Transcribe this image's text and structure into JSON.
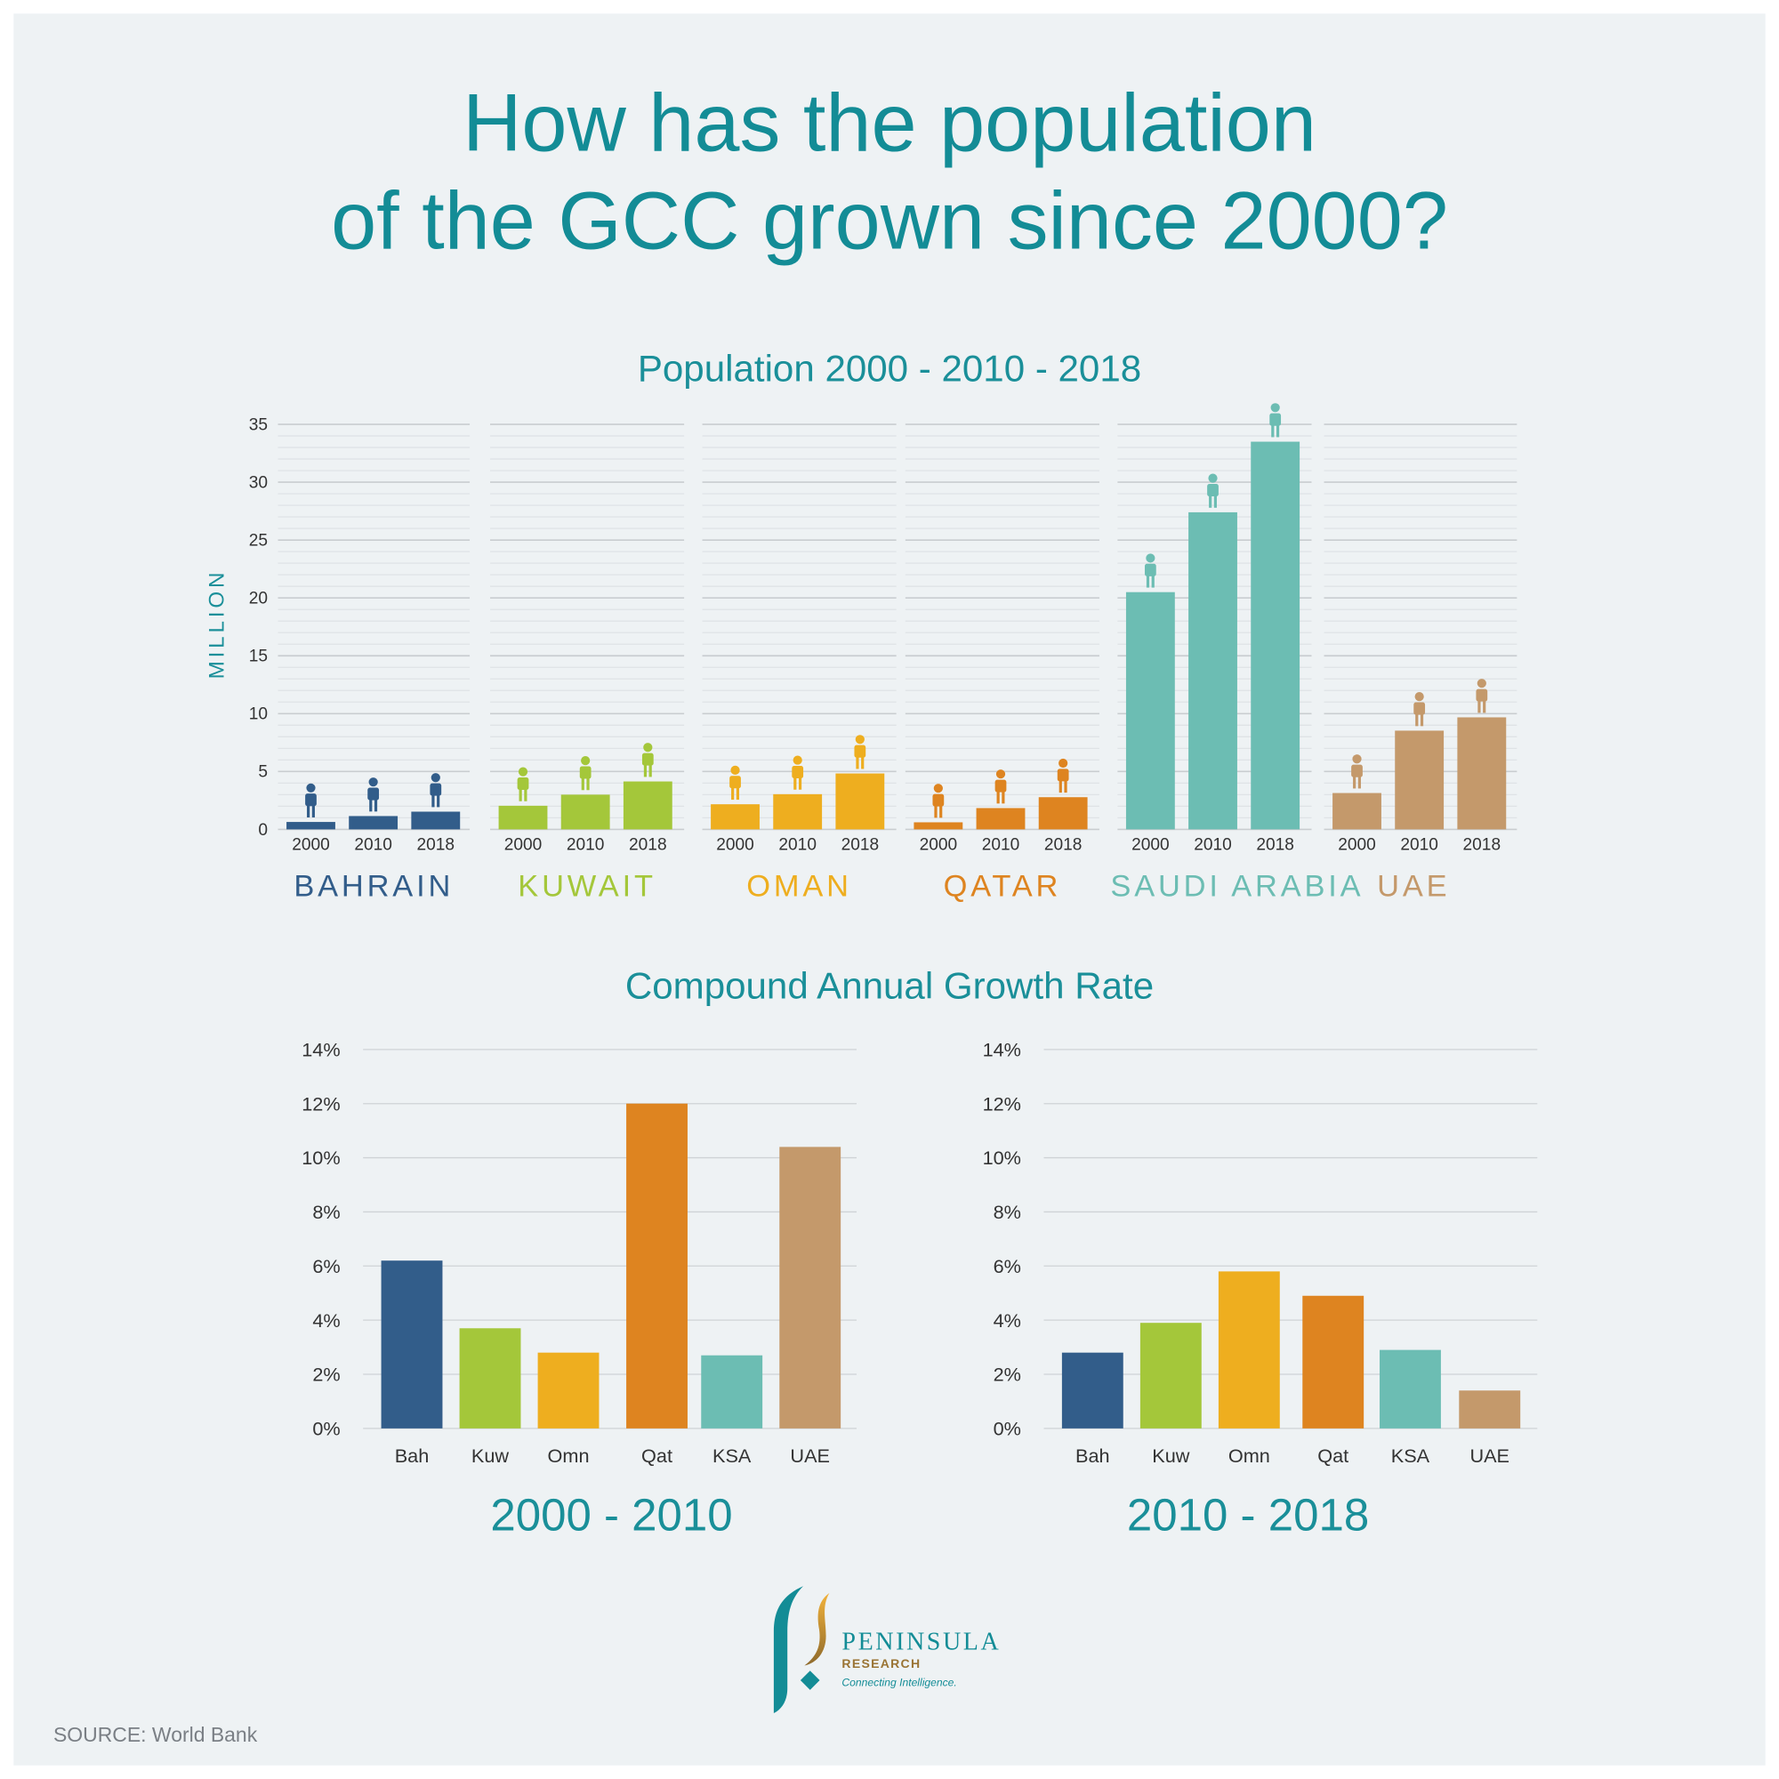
{
  "title": {
    "line1": "How has the population",
    "line2": "of the GCC grown since 2000?"
  },
  "source": "SOURCE: World Bank",
  "logo": {
    "name": "PENINSULA",
    "sub": "RESEARCH",
    "tagline": "Connecting Intelligence."
  },
  "colors": {
    "title": "#138c96",
    "Bahrain": "#325d8a",
    "Kuwait": "#a4c73a",
    "Oman": "#eeae1f",
    "Qatar": "#de8420",
    "Saudi Arabia": "#6cbdb3",
    "UAE": "#c4996b"
  },
  "chart_data": [
    {
      "type": "bar",
      "title": "Population 2000 - 2010 - 2018",
      "ylabel": "MILLION",
      "ylim": [
        0,
        35
      ],
      "yticks": [
        0,
        5,
        10,
        15,
        20,
        25,
        30,
        35
      ],
      "grid": true,
      "categories": [
        "2000",
        "2010",
        "2018"
      ],
      "groups": [
        {
          "name": "BAHRAIN",
          "key": "Bahrain",
          "values": [
            0.64,
            1.15,
            1.53
          ]
        },
        {
          "name": "KUWAIT",
          "key": "Kuwait",
          "values": [
            2.04,
            3.0,
            4.14
          ]
        },
        {
          "name": "OMAN",
          "key": "Oman",
          "values": [
            2.17,
            3.04,
            4.83
          ]
        },
        {
          "name": "QATAR",
          "key": "Qatar",
          "values": [
            0.61,
            1.84,
            2.78
          ]
        },
        {
          "name": "SAUDI ARABIA",
          "key": "Saudi Arabia",
          "values": [
            20.5,
            27.4,
            33.5
          ]
        },
        {
          "name": "UAE",
          "key": "UAE",
          "values": [
            3.14,
            8.53,
            9.68
          ]
        }
      ]
    },
    {
      "type": "bar",
      "title": "Compound Annual Growth Rate",
      "period": "2000 - 2010",
      "ylim": [
        0,
        14
      ],
      "yticks": [
        "0%",
        "2%",
        "4%",
        "6%",
        "8%",
        "10%",
        "12%",
        "14%"
      ],
      "grid": true,
      "categories": [
        "Bah",
        "Kuw",
        "Omn",
        "Qat",
        "KSA",
        "UAE"
      ],
      "values": [
        6.2,
        3.7,
        2.8,
        12.0,
        2.7,
        10.4
      ]
    },
    {
      "type": "bar",
      "period": "2010 - 2018",
      "ylim": [
        0,
        14
      ],
      "yticks": [
        "0%",
        "2%",
        "4%",
        "6%",
        "8%",
        "10%",
        "12%",
        "14%"
      ],
      "grid": true,
      "categories": [
        "Bah",
        "Kuw",
        "Omn",
        "Qat",
        "KSA",
        "UAE"
      ],
      "values": [
        2.8,
        3.9,
        5.8,
        4.9,
        2.9,
        1.4
      ]
    }
  ]
}
